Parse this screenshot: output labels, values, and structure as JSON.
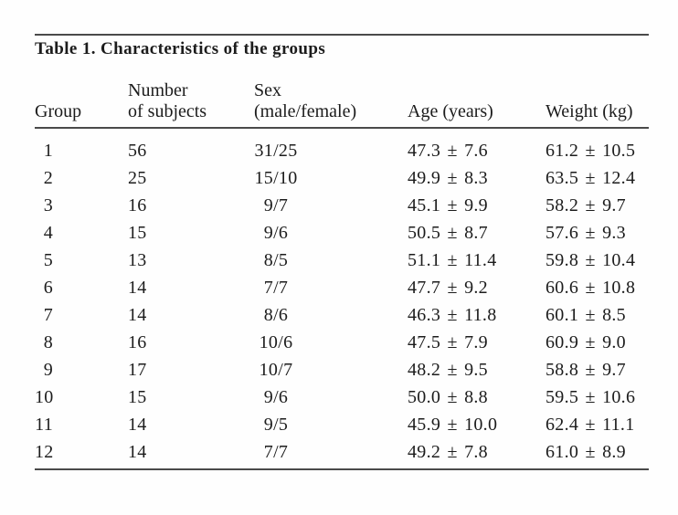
{
  "page": {
    "background": "#fefefe",
    "text_color": "#1c1c1c",
    "rule_color": "#4a4a4a"
  },
  "table": {
    "title": "Table 1. Characteristics of the groups",
    "columns": [
      {
        "line2": "Group"
      },
      {
        "line1": "Number",
        "line2": "of subjects"
      },
      {
        "line1": "Sex",
        "line2": "(male/female)"
      },
      {
        "line2": "Age (years)"
      },
      {
        "line2": "Weight (kg)"
      }
    ],
    "rows": [
      {
        "group": "1",
        "subjects": "56",
        "sex": "31/25",
        "age": "47.3 ± 7.6",
        "weight": "61.2 ± 10.5"
      },
      {
        "group": "2",
        "subjects": "25",
        "sex": "15/10",
        "age": "49.9 ± 8.3",
        "weight": "63.5 ± 12.4"
      },
      {
        "group": "3",
        "subjects": "16",
        "sex": "9/7",
        "age": "45.1 ± 9.9",
        "weight": "58.2 ± 9.7"
      },
      {
        "group": "4",
        "subjects": "15",
        "sex": "9/6",
        "age": "50.5 ± 8.7",
        "weight": "57.6 ± 9.3"
      },
      {
        "group": "5",
        "subjects": "13",
        "sex": "8/5",
        "age": "51.1 ± 11.4",
        "weight": "59.8 ± 10.4"
      },
      {
        "group": "6",
        "subjects": "14",
        "sex": "7/7",
        "age": "47.7 ± 9.2",
        "weight": "60.6 ± 10.8"
      },
      {
        "group": "7",
        "subjects": "14",
        "sex": "8/6",
        "age": "46.3 ± 11.8",
        "weight": "60.1 ± 8.5"
      },
      {
        "group": "8",
        "subjects": "16",
        "sex": "10/6",
        "age": "47.5 ± 7.9",
        "weight": "60.9 ± 9.0"
      },
      {
        "group": "9",
        "subjects": "17",
        "sex": "10/7",
        "age": "48.2 ± 9.5",
        "weight": "58.8 ± 9.7"
      },
      {
        "group": "10",
        "subjects": "15",
        "sex": "9/6",
        "age": "50.0 ± 8.8",
        "weight": "59.5 ± 10.6"
      },
      {
        "group": "11",
        "subjects": "14",
        "sex": "9/5",
        "age": "45.9 ± 10.0",
        "weight": "62.4 ± 11.1"
      },
      {
        "group": "12",
        "subjects": "14",
        "sex": "7/7",
        "age": "49.2 ± 7.8",
        "weight": "61.0 ± 8.9"
      }
    ]
  }
}
